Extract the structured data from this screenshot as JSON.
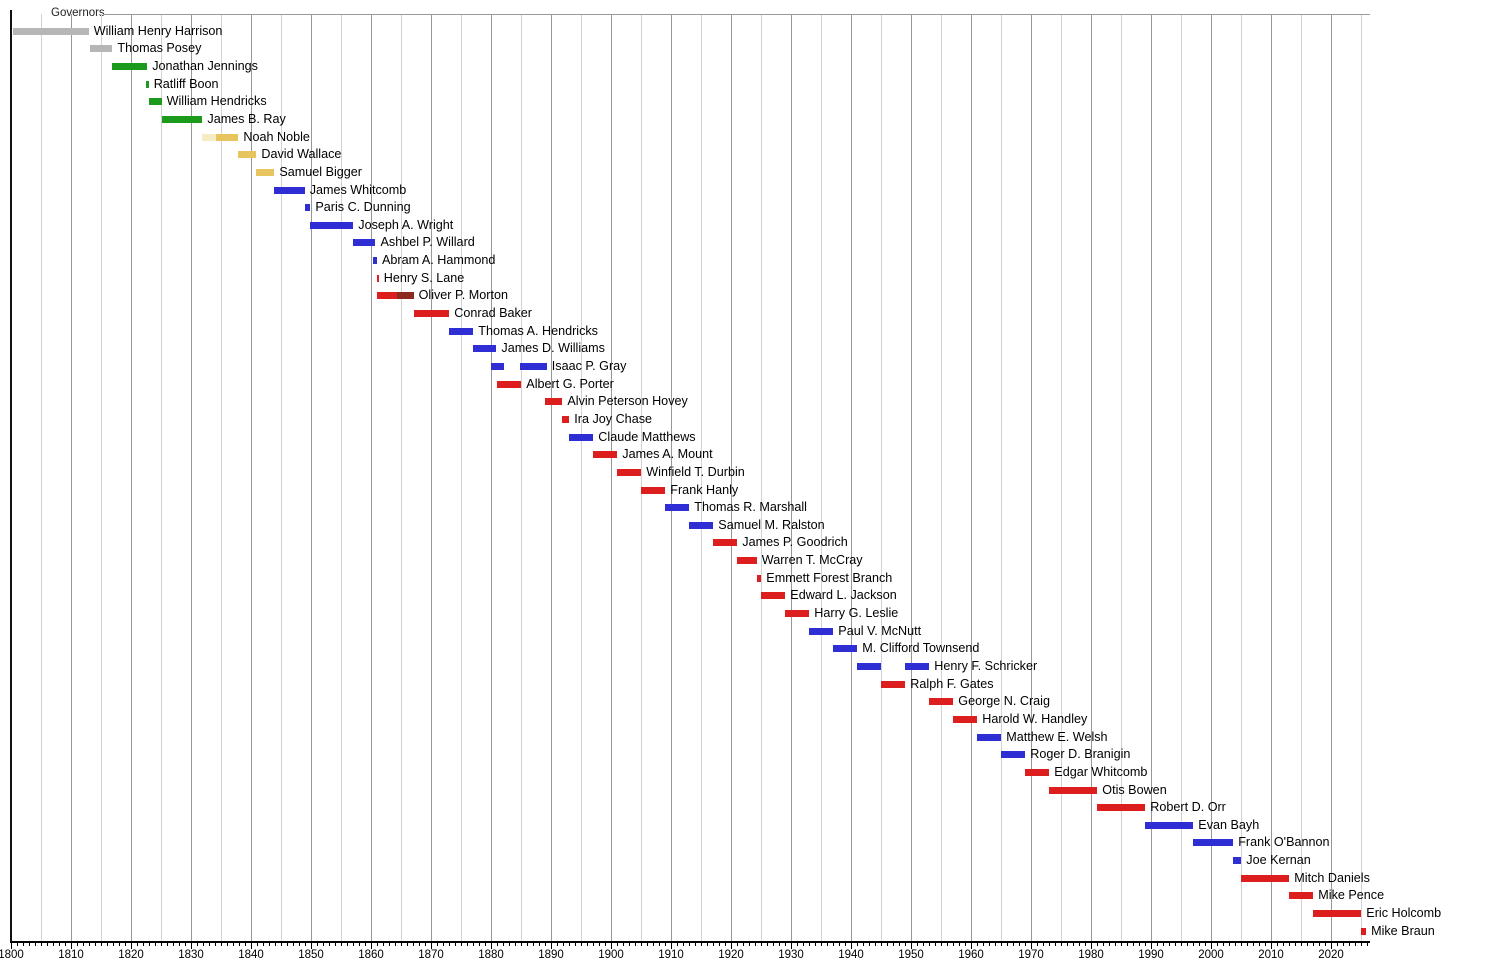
{
  "header": {
    "title": "Governors"
  },
  "colors": {
    "background": "#ffffff",
    "gridline_major": "#979797",
    "gridline_minor": "#d2d2d2",
    "axis": "#000000",
    "label_text": "#000000",
    "top_line": "#9a9a9a"
  },
  "chart_data": {
    "type": "timeline",
    "title": "Governors",
    "x_axis": {
      "min": 1800,
      "max": 2026,
      "major_tick_interval": 10,
      "minor_tick_interval": 1,
      "gridline_interval": 5,
      "tick_labels": [
        "1800",
        "1810",
        "1820",
        "1830",
        "1840",
        "1850",
        "1860",
        "1870",
        "1880",
        "1890",
        "1900",
        "1910",
        "1920",
        "1930",
        "1940",
        "1950",
        "1960",
        "1970",
        "1980",
        "1990",
        "2000",
        "2010",
        "2020"
      ]
    },
    "party_colors": {
      "territorial": "#b6b6b6",
      "democratic_republican": "#1b9a1b",
      "national_republican": "#f6ecc3",
      "whig": "#e7c45e",
      "democratic": "#2e2ed4",
      "republican": "#dd1e1e",
      "national_union": "#8c2a1e"
    },
    "governors": [
      {
        "name": "William Henry Harrison",
        "terms": [
          {
            "start": 1800.35,
            "end": 1812.95,
            "party": "territorial"
          }
        ]
      },
      {
        "name": "Thomas Posey",
        "terms": [
          {
            "start": 1813.15,
            "end": 1816.9,
            "party": "territorial"
          }
        ]
      },
      {
        "name": "Jonathan Jennings",
        "terms": [
          {
            "start": 1816.9,
            "end": 1822.7,
            "party": "democratic_republican"
          }
        ]
      },
      {
        "name": "Ratliff Boon",
        "terms": [
          {
            "start": 1822.55,
            "end": 1822.95,
            "party": "democratic_republican"
          }
        ]
      },
      {
        "name": "William Hendricks",
        "terms": [
          {
            "start": 1822.95,
            "end": 1825.1,
            "party": "democratic_republican"
          }
        ]
      },
      {
        "name": "James B. Ray",
        "terms": [
          {
            "start": 1825.1,
            "end": 1831.9,
            "party": "democratic_republican"
          }
        ]
      },
      {
        "name": "Noah Noble",
        "terms": [
          {
            "start": 1831.9,
            "end": 1834.2,
            "party": "national_republican"
          },
          {
            "start": 1834.2,
            "end": 1837.9,
            "party": "whig"
          }
        ]
      },
      {
        "name": "David Wallace",
        "terms": [
          {
            "start": 1837.9,
            "end": 1840.9,
            "party": "whig"
          }
        ]
      },
      {
        "name": "Samuel Bigger",
        "terms": [
          {
            "start": 1840.9,
            "end": 1843.9,
            "party": "whig"
          }
        ]
      },
      {
        "name": "James Whitcomb",
        "terms": [
          {
            "start": 1843.9,
            "end": 1848.95,
            "party": "democratic"
          }
        ]
      },
      {
        "name": "Paris C. Dunning",
        "terms": [
          {
            "start": 1848.95,
            "end": 1849.9,
            "party": "democratic"
          }
        ]
      },
      {
        "name": "Joseph A. Wright",
        "terms": [
          {
            "start": 1849.9,
            "end": 1857.05,
            "party": "democratic"
          }
        ]
      },
      {
        "name": "Ashbel P. Willard",
        "terms": [
          {
            "start": 1857.05,
            "end": 1860.75,
            "party": "democratic"
          }
        ]
      },
      {
        "name": "Abram A. Hammond",
        "terms": [
          {
            "start": 1860.3,
            "end": 1861.0,
            "party": "democratic"
          }
        ]
      },
      {
        "name": "Henry S. Lane",
        "terms": [
          {
            "start": 1861.0,
            "end": 1861.3,
            "party": "republican"
          }
        ]
      },
      {
        "name": "Oliver P. Morton",
        "terms": [
          {
            "start": 1861.05,
            "end": 1864.4,
            "party": "republican"
          },
          {
            "start": 1864.4,
            "end": 1867.1,
            "party": "national_union"
          }
        ]
      },
      {
        "name": "Conrad Baker",
        "terms": [
          {
            "start": 1867.1,
            "end": 1873.05,
            "party": "republican"
          }
        ]
      },
      {
        "name": "Thomas A. Hendricks",
        "terms": [
          {
            "start": 1873.05,
            "end": 1877.05,
            "party": "democratic"
          }
        ]
      },
      {
        "name": "James D. Williams",
        "terms": [
          {
            "start": 1877.05,
            "end": 1880.9,
            "party": "democratic"
          }
        ]
      },
      {
        "name": "Isaac P. Gray",
        "terms": [
          {
            "start": 1880.05,
            "end": 1882.2,
            "party": "democratic"
          },
          {
            "start": 1884.8,
            "end": 1889.3,
            "party": "democratic"
          }
        ]
      },
      {
        "name": "Albert G. Porter",
        "terms": [
          {
            "start": 1881.05,
            "end": 1885.05,
            "party": "republican"
          }
        ]
      },
      {
        "name": "Alvin Peterson Hovey",
        "terms": [
          {
            "start": 1889.05,
            "end": 1891.9,
            "party": "republican"
          }
        ]
      },
      {
        "name": "Ira Joy Chase",
        "terms": [
          {
            "start": 1891.9,
            "end": 1893.05,
            "party": "republican"
          }
        ]
      },
      {
        "name": "Claude Matthews",
        "terms": [
          {
            "start": 1893.05,
            "end": 1897.05,
            "party": "democratic"
          }
        ]
      },
      {
        "name": "James A. Mount",
        "terms": [
          {
            "start": 1897.05,
            "end": 1901.05,
            "party": "republican"
          }
        ]
      },
      {
        "name": "Winfield T. Durbin",
        "terms": [
          {
            "start": 1901.05,
            "end": 1905.05,
            "party": "republican"
          }
        ]
      },
      {
        "name": "Frank Hanly",
        "terms": [
          {
            "start": 1905.05,
            "end": 1909.05,
            "party": "republican"
          }
        ]
      },
      {
        "name": "Thomas R. Marshall",
        "terms": [
          {
            "start": 1909.05,
            "end": 1913.05,
            "party": "democratic"
          }
        ]
      },
      {
        "name": "Samuel M. Ralston",
        "terms": [
          {
            "start": 1913.05,
            "end": 1917.05,
            "party": "democratic"
          }
        ]
      },
      {
        "name": "James P. Goodrich",
        "terms": [
          {
            "start": 1917.05,
            "end": 1921.05,
            "party": "republican"
          }
        ]
      },
      {
        "name": "Warren T. McCray",
        "terms": [
          {
            "start": 1921.05,
            "end": 1924.3,
            "party": "republican"
          }
        ]
      },
      {
        "name": "Emmett Forest Branch",
        "terms": [
          {
            "start": 1924.3,
            "end": 1925.05,
            "party": "republican"
          }
        ]
      },
      {
        "name": "Edward L. Jackson",
        "terms": [
          {
            "start": 1925.05,
            "end": 1929.05,
            "party": "republican"
          }
        ]
      },
      {
        "name": "Harry G. Leslie",
        "terms": [
          {
            "start": 1929.05,
            "end": 1933.05,
            "party": "republican"
          }
        ]
      },
      {
        "name": "Paul V. McNutt",
        "terms": [
          {
            "start": 1933.05,
            "end": 1937.05,
            "party": "democratic"
          }
        ]
      },
      {
        "name": "M. Clifford Townsend",
        "terms": [
          {
            "start": 1937.05,
            "end": 1941.05,
            "party": "democratic"
          }
        ]
      },
      {
        "name": "Henry F. Schricker",
        "terms": [
          {
            "start": 1941.05,
            "end": 1945.05,
            "party": "democratic"
          },
          {
            "start": 1949.05,
            "end": 1953.05,
            "party": "democratic"
          }
        ]
      },
      {
        "name": "Ralph F. Gates",
        "terms": [
          {
            "start": 1945.05,
            "end": 1949.05,
            "party": "republican"
          }
        ]
      },
      {
        "name": "George N. Craig",
        "terms": [
          {
            "start": 1953.05,
            "end": 1957.05,
            "party": "republican"
          }
        ]
      },
      {
        "name": "Harold W. Handley",
        "terms": [
          {
            "start": 1957.05,
            "end": 1961.05,
            "party": "republican"
          }
        ]
      },
      {
        "name": "Matthew E. Welsh",
        "terms": [
          {
            "start": 1961.05,
            "end": 1965.05,
            "party": "democratic"
          }
        ]
      },
      {
        "name": "Roger D. Branigin",
        "terms": [
          {
            "start": 1965.05,
            "end": 1969.05,
            "party": "democratic"
          }
        ]
      },
      {
        "name": "Edgar Whitcomb",
        "terms": [
          {
            "start": 1969.05,
            "end": 1973.05,
            "party": "republican"
          }
        ]
      },
      {
        "name": "Otis Bowen",
        "terms": [
          {
            "start": 1973.05,
            "end": 1981.05,
            "party": "republican"
          }
        ]
      },
      {
        "name": "Robert D. Orr",
        "terms": [
          {
            "start": 1981.05,
            "end": 1989.05,
            "party": "republican"
          }
        ]
      },
      {
        "name": "Evan Bayh",
        "terms": [
          {
            "start": 1989.05,
            "end": 1997.05,
            "party": "democratic"
          }
        ]
      },
      {
        "name": "Frank O'Bannon",
        "terms": [
          {
            "start": 1997.05,
            "end": 2003.7,
            "party": "democratic"
          }
        ]
      },
      {
        "name": "Joe Kernan",
        "terms": [
          {
            "start": 2003.7,
            "end": 2005.05,
            "party": "democratic"
          }
        ]
      },
      {
        "name": "Mitch Daniels",
        "terms": [
          {
            "start": 2005.05,
            "end": 2013.05,
            "party": "republican"
          }
        ]
      },
      {
        "name": "Mike Pence",
        "terms": [
          {
            "start": 2013.05,
            "end": 2017.05,
            "party": "republican"
          }
        ]
      },
      {
        "name": "Eric Holcomb",
        "terms": [
          {
            "start": 2017.05,
            "end": 2025.05,
            "party": "republican"
          }
        ]
      },
      {
        "name": "Mike Braun",
        "terms": [
          {
            "start": 2025.05,
            "end": 2025.85,
            "party": "republican"
          }
        ]
      }
    ]
  }
}
